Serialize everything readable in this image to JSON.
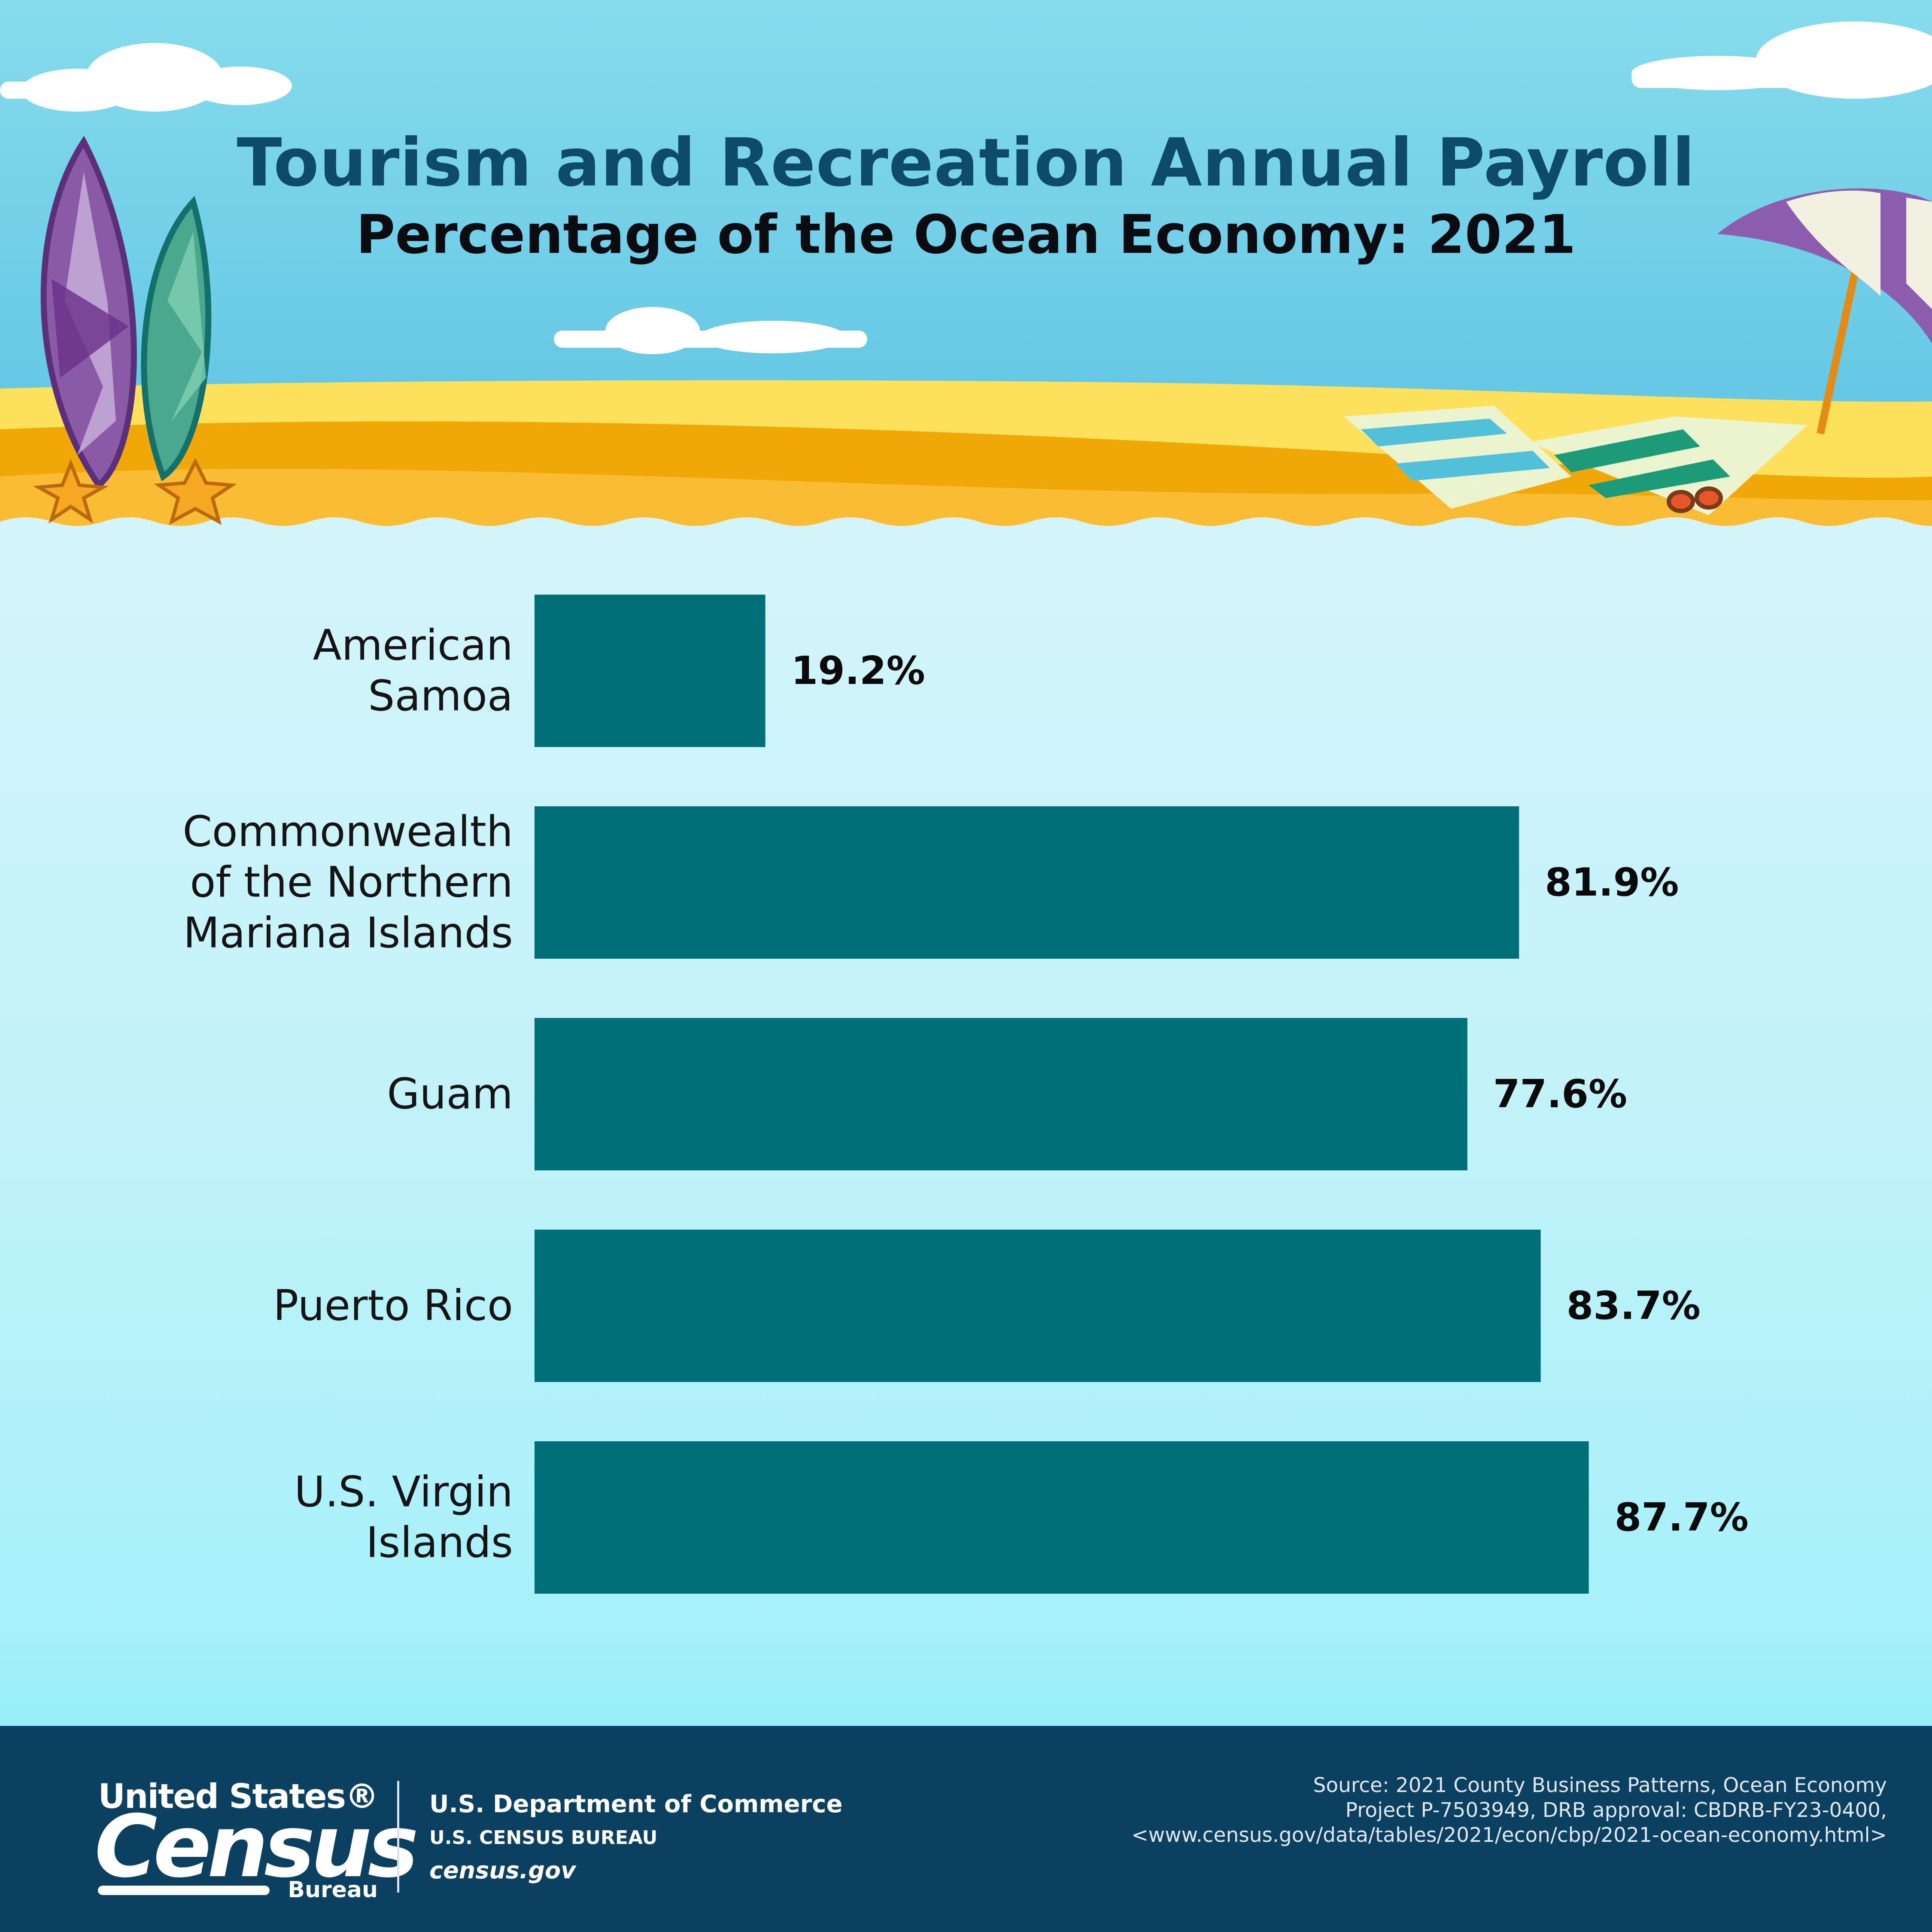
{
  "header": {
    "title": "Tourism and Recreation Annual Payroll",
    "subtitle": "Percentage of the Ocean Economy: 2021"
  },
  "chart_data": {
    "type": "bar",
    "orientation": "horizontal",
    "categories": [
      [
        "American",
        "Samoa"
      ],
      [
        "Commonwealth",
        "of the Northern",
        "Mariana Islands"
      ],
      [
        "Guam"
      ],
      [
        "Puerto Rico"
      ],
      [
        "U.S. Virgin",
        "Islands"
      ]
    ],
    "values": [
      19.2,
      81.9,
      77.6,
      83.7,
      87.7
    ],
    "value_labels": [
      "19.2%",
      "81.9%",
      "77.6%",
      "83.7%",
      "87.7%"
    ],
    "xlim": [
      0,
      100
    ],
    "bar_color": "#006f78",
    "grid": false,
    "legend": "none"
  },
  "footer": {
    "logo_top": "United States®",
    "logo_main": "Census",
    "logo_bottom": "Bureau",
    "department": "U.S. Department of Commerce",
    "bureau": "U.S. CENSUS BUREAU",
    "website": "census.gov",
    "source_lines": [
      "Source: 2021 County Business Patterns, Ocean Economy",
      "Project P-7503949, DRB approval: CBDRB-FY23-0400,",
      "<www.census.gov/data/tables/2021/econ/cbp/2021-ocean-economy.html>"
    ]
  },
  "colors": {
    "sky": "#7fd6ea",
    "sand": "#fdd956",
    "chart_background": "#c6f3fa",
    "bar": "#006f78",
    "title": "#0e4a6a",
    "footer": "#0b4060"
  }
}
